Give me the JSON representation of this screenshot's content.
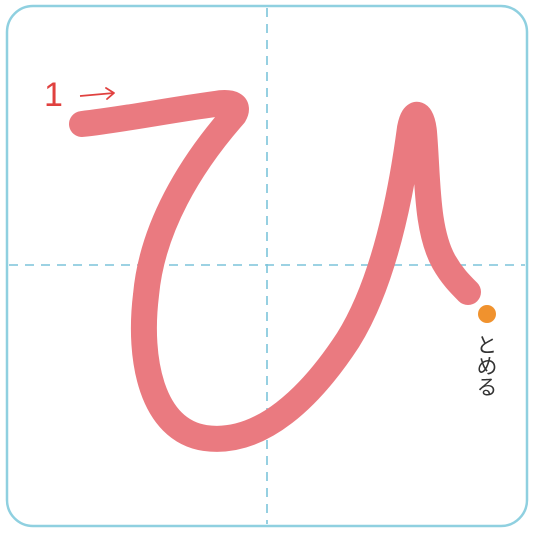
{
  "character": {
    "glyph": "ひ",
    "stroke_color": "#ea7a80"
  },
  "guide": {
    "frame_color": "#8fd0e0",
    "dash_color": "#7cc4da"
  },
  "stroke_order": {
    "number": "1",
    "arrow_symbol": "→",
    "arrow_color": "#e0413f"
  },
  "stop_marker": {
    "label": "とめる",
    "dot_color": "#f0922e"
  }
}
